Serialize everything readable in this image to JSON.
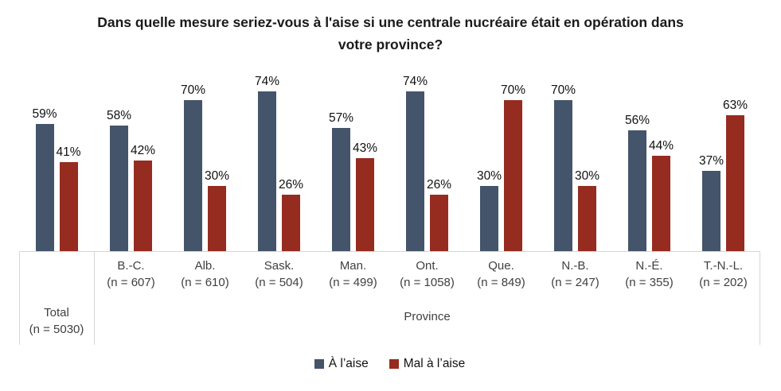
{
  "title": "Dans quelle mesure seriez-vous à l'aise si une centrale nucréaire était en opération dans votre province?",
  "axis": {
    "group_label": "Province"
  },
  "legend": {
    "position": "bottom-center"
  },
  "colors": {
    "a_laise": "#44546a",
    "mal_a_laise": "#962b20",
    "axis_line": "#d6d6d6",
    "label_text": "#3f3f3f"
  },
  "chart_data": {
    "type": "bar",
    "title": "Dans quelle mesure seriez-vous à l'aise si une centrale nucréaire était en opération dans votre province?",
    "categories": [
      {
        "label": "Total",
        "n": "(n = 5030)"
      },
      {
        "label": "B.-C.",
        "n": "(n = 607)"
      },
      {
        "label": "Alb.",
        "n": "(n = 610)"
      },
      {
        "label": "Sask.",
        "n": "(n = 504)"
      },
      {
        "label": "Man.",
        "n": "(n = 499)"
      },
      {
        "label": "Ont.",
        "n": "(n = 1058)"
      },
      {
        "label": "Que.",
        "n": "(n = 849)"
      },
      {
        "label": "N.-B.",
        "n": "(n = 247)"
      },
      {
        "label": "N.-É.",
        "n": "(n = 355)"
      },
      {
        "label": "T.-N.-L.",
        "n": "(n = 202)"
      }
    ],
    "xlabel_group": "Province",
    "series": [
      {
        "name": "À l’aise",
        "color": "#44546a",
        "values": [
          59,
          58,
          70,
          74,
          57,
          74,
          30,
          70,
          56,
          37
        ]
      },
      {
        "name": "Mal à l’aise",
        "color": "#962b20",
        "values": [
          41,
          42,
          30,
          26,
          43,
          26,
          70,
          30,
          44,
          63
        ]
      }
    ],
    "value_suffix": "%",
    "ylim": [
      0,
      100
    ],
    "grid": false,
    "legend_position": "bottom"
  }
}
